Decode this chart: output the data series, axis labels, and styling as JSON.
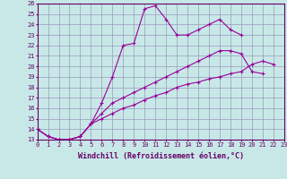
{
  "title": "",
  "xlabel": "Windchill (Refroidissement éolien,°C)",
  "ylabel": "",
  "background_color": "#c8e8e8",
  "grid_color": "#9999bb",
  "line_color": "#990099",
  "x_values": [
    0,
    1,
    2,
    3,
    4,
    5,
    6,
    7,
    8,
    9,
    10,
    11,
    12,
    13,
    14,
    15,
    16,
    17,
    18,
    19,
    20,
    21,
    22,
    23
  ],
  "series1": [
    14,
    13.3,
    13,
    13,
    13.3,
    14.5,
    16.5,
    19,
    22,
    22.2,
    25.5,
    25.8,
    24.5,
    23,
    23,
    23.5,
    24,
    24.5,
    23.5,
    23,
    null,
    null,
    null,
    null
  ],
  "series2": [
    14,
    13.3,
    13,
    13,
    13.3,
    14.5,
    15.5,
    16.5,
    17,
    17.5,
    18,
    18.5,
    19,
    19.5,
    20,
    20.5,
    21,
    21.5,
    21.5,
    21.2,
    19.5,
    19.3,
    null,
    null
  ],
  "series3": [
    14,
    13.3,
    13,
    13,
    13.3,
    14.5,
    15,
    15.5,
    16,
    16.3,
    16.8,
    17.2,
    17.5,
    18,
    18.3,
    18.5,
    18.8,
    19,
    19.3,
    19.5,
    20.2,
    20.5,
    20.2,
    null
  ],
  "ylim": [
    13,
    26
  ],
  "xlim": [
    0,
    23
  ],
  "yticks": [
    13,
    14,
    15,
    16,
    17,
    18,
    19,
    20,
    21,
    22,
    23,
    24,
    25,
    26
  ],
  "xticks": [
    0,
    1,
    2,
    3,
    4,
    5,
    6,
    7,
    8,
    9,
    10,
    11,
    12,
    13,
    14,
    15,
    16,
    17,
    18,
    19,
    20,
    21,
    22,
    23
  ],
  "tick_fontsize": 5.0,
  "xlabel_fontsize": 6.0,
  "marker": "+",
  "markersize": 3,
  "linewidth": 0.8
}
